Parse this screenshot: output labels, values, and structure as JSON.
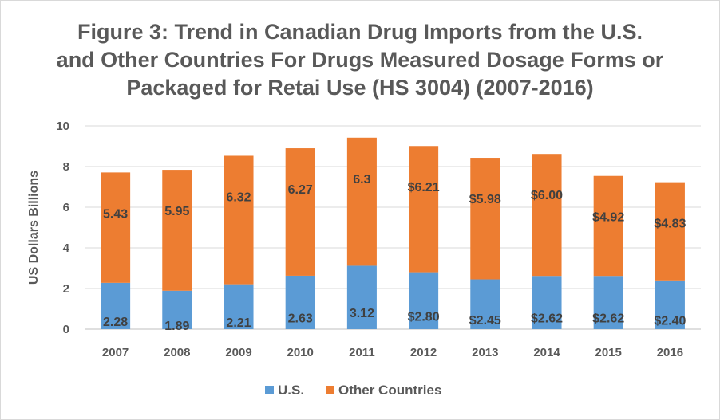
{
  "chart_data": {
    "type": "bar",
    "stacked": true,
    "title_lines": [
      "Figure 3: Trend in Canadian Drug Imports from the U.S.",
      "and Other Countries For Drugs Measured Dosage Forms or",
      "Packaged for Retai Use (HS 3004) (2007-2016)"
    ],
    "ylabel": "US Dollars Billions",
    "xlabel": "",
    "ylim": [
      0,
      10
    ],
    "yticks": [
      "0",
      "2",
      "4",
      "6",
      "8",
      "10"
    ],
    "grid": true,
    "legend_position": "bottom",
    "categories": [
      "2007",
      "2008",
      "2009",
      "2010",
      "2011",
      "2012",
      "2013",
      "2014",
      "2015",
      "2016"
    ],
    "series": [
      {
        "name": "U.S.",
        "color": "#5b9bd5",
        "values": [
          2.28,
          1.89,
          2.21,
          2.63,
          3.12,
          2.8,
          2.45,
          2.62,
          2.62,
          2.4
        ],
        "labels": [
          "2.28",
          "1.89",
          "2.21",
          "2.63",
          "3.12",
          "$2.80",
          "$2.45",
          "$2.62",
          "$2.62",
          "$2.40"
        ]
      },
      {
        "name": "Other Countries",
        "color": "#ed7d31",
        "values": [
          5.43,
          5.95,
          6.32,
          6.27,
          6.3,
          6.21,
          5.98,
          6.0,
          4.92,
          4.83
        ],
        "labels": [
          "5.43",
          "5.95",
          "6.32",
          "6.27",
          "6.3",
          "$6.21",
          "$5.98",
          "$6.00",
          "$4.92",
          "$4.83"
        ]
      }
    ]
  }
}
